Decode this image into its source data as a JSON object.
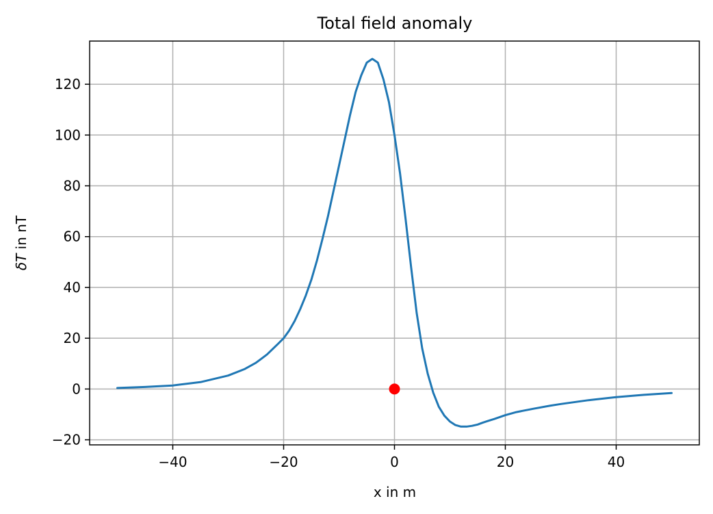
{
  "chart_data": {
    "type": "line",
    "title": "Total field anomaly",
    "xlabel": "x in m",
    "ylabel_prefix": "δ",
    "ylabel_var": "T",
    "ylabel_suffix": " in nT",
    "xlim": [
      -55,
      55
    ],
    "ylim": [
      -22,
      137
    ],
    "xticks": [
      -40,
      -20,
      0,
      20,
      40
    ],
    "yticks": [
      -20,
      0,
      20,
      40,
      60,
      80,
      100,
      120
    ],
    "xtick_labels": [
      "−40",
      "−20",
      "0",
      "20",
      "40"
    ],
    "ytick_labels": [
      "−20",
      "0",
      "20",
      "40",
      "60",
      "80",
      "100",
      "120"
    ],
    "grid": true,
    "colors": {
      "line": "#1f77b4",
      "marker": "#ff0000",
      "grid": "#b0b0b0"
    },
    "series": [
      {
        "x": [
          -50,
          -45,
          -40,
          -35,
          -30,
          -27,
          -25,
          -23,
          -21,
          -20,
          -19,
          -18,
          -17,
          -16,
          -15,
          -14,
          -13,
          -12,
          -11,
          -10,
          -9,
          -8,
          -7,
          -6,
          -5,
          -4,
          -3,
          -2,
          -1,
          0,
          1,
          2,
          3,
          4,
          5,
          6,
          7,
          8,
          9,
          10,
          11,
          12,
          13,
          14,
          15,
          16,
          17,
          18,
          20,
          22,
          25,
          28,
          30,
          35,
          40,
          45,
          50
        ],
        "y": [
          0.4,
          0.8,
          1.4,
          2.7,
          5.3,
          7.9,
          10.3,
          13.6,
          17.8,
          20.0,
          23.0,
          26.8,
          31.5,
          36.8,
          43.0,
          50.5,
          59.0,
          68.0,
          78.0,
          88.0,
          98.0,
          108.0,
          117.0,
          123.5,
          128.5,
          130.0,
          128.5,
          122.0,
          113.0,
          100.0,
          85.0,
          67.0,
          48.0,
          30.0,
          16.0,
          6.0,
          -1.5,
          -7.0,
          -10.5,
          -12.8,
          -14.2,
          -14.8,
          -14.8,
          -14.5,
          -14.0,
          -13.2,
          -12.5,
          -11.8,
          -10.3,
          -9.1,
          -7.8,
          -6.6,
          -5.9,
          -4.4,
          -3.2,
          -2.3,
          -1.6
        ]
      }
    ],
    "markers": [
      {
        "x": 0,
        "y": 0
      }
    ]
  }
}
